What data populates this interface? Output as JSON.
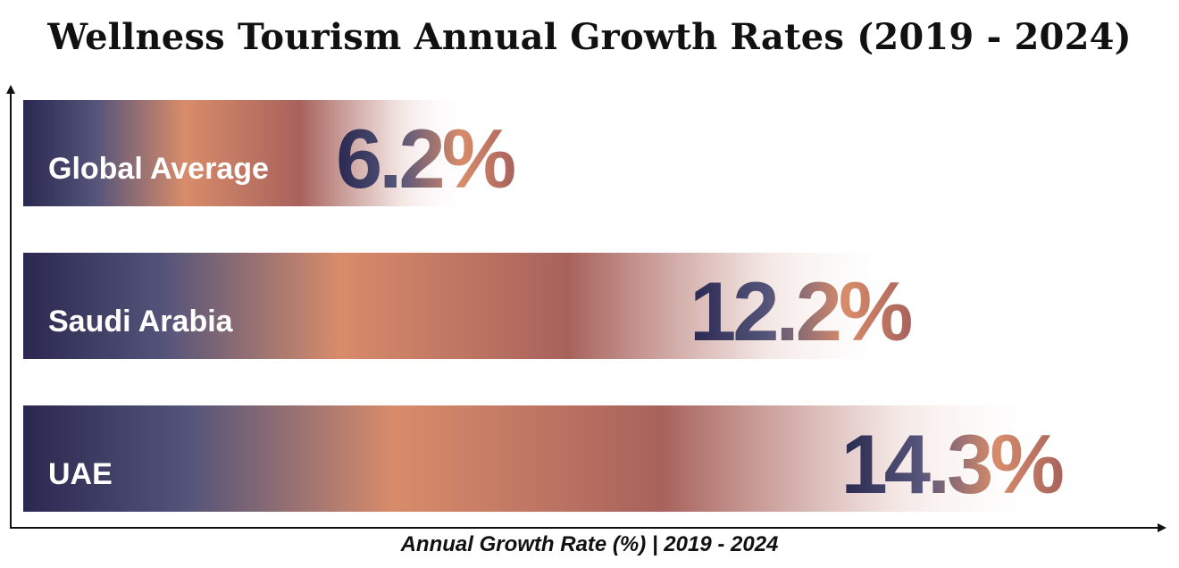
{
  "chart_data": {
    "type": "bar",
    "orientation": "horizontal",
    "title": "Wellness Tourism Annual Growth Rates (2019 - 2024)",
    "xlabel": "Annual Growth Rate (%) | 2019 - 2024",
    "ylabel": "",
    "categories": [
      "Global Average",
      "Saudi Arabia",
      "UAE"
    ],
    "values": [
      6.2,
      12.2,
      14.3
    ],
    "value_labels": [
      "6.2%",
      "12.2%",
      "14.3%"
    ],
    "xlim": [
      0,
      14.3
    ],
    "grid": false,
    "colors": {
      "navy": "#2a2850",
      "slate": "#54547a",
      "copper": "#d88c6a",
      "rose": "#a8625c",
      "fade": "#f3e6e3"
    }
  }
}
